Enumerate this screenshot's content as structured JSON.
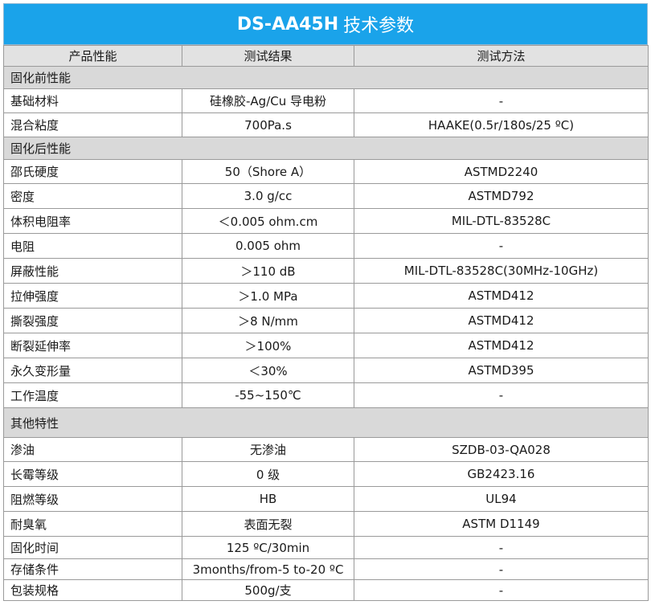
{
  "title": {
    "main": "DS-AA45H",
    "suffix": "技术参数"
  },
  "headers": [
    "产品性能",
    "测试结果",
    "测试方法"
  ],
  "rows": [
    {
      "type": "section",
      "label": "固化前性能",
      "h": 28
    },
    {
      "type": "data",
      "cells": [
        "基础材料",
        "硅橡胶-Ag/Cu 导电粉",
        "-"
      ],
      "h": 30
    },
    {
      "type": "data",
      "cells": [
        "混合粘度",
        "700Pa.s",
        "HAAKE(0.5r/180s/25 ºC)"
      ],
      "h": 30
    },
    {
      "type": "section",
      "label": "固化后性能",
      "h": 28
    },
    {
      "type": "data",
      "cells": [
        "邵氏硬度",
        "50（Shore A）",
        "ASTMD2240"
      ],
      "h": 30
    },
    {
      "type": "data",
      "cells": [
        "密度",
        "3.0 g/cc",
        "ASTMD792"
      ],
      "h": 31
    },
    {
      "type": "data",
      "cells": [
        "体积电阻率",
        "＜0.005 ohm.cm",
        "MIL-DTL-83528C"
      ],
      "h": 31
    },
    {
      "type": "data",
      "cells": [
        "电阻",
        "0.005 ohm",
        "-"
      ],
      "h": 31
    },
    {
      "type": "data",
      "cells": [
        "屏蔽性能",
        "＞110 dB",
        "MIL-DTL-83528C(30MHz-10GHz)"
      ],
      "h": 31
    },
    {
      "type": "data",
      "cells": [
        "拉伸强度",
        "＞1.0 MPa",
        "ASTMD412"
      ],
      "h": 31
    },
    {
      "type": "data",
      "cells": [
        "撕裂强度",
        "＞8 N/mm",
        "ASTMD412"
      ],
      "h": 31
    },
    {
      "type": "data",
      "cells": [
        "断裂延伸率",
        "＞100%",
        "ASTMD412"
      ],
      "h": 31
    },
    {
      "type": "data",
      "cells": [
        "永久变形量",
        "＜30%",
        "ASTMD395"
      ],
      "h": 31
    },
    {
      "type": "data",
      "cells": [
        "工作温度",
        "-55~150℃",
        "-"
      ],
      "h": 31
    },
    {
      "type": "section",
      "label": "其他特性",
      "h": 37
    },
    {
      "type": "data",
      "cells": [
        "渗油",
        "无渗油",
        "SZDB-03-QA028"
      ],
      "h": 30
    },
    {
      "type": "data",
      "cells": [
        "长霉等级",
        "0 级",
        "GB2423.16"
      ],
      "h": 31
    },
    {
      "type": "data",
      "cells": [
        "阻燃等级",
        "HB",
        "UL94"
      ],
      "h": 31
    },
    {
      "type": "data",
      "cells": [
        "耐臭氧",
        "表面无裂",
        "ASTM D1149"
      ],
      "h": 31
    },
    {
      "type": "data",
      "cells": [
        "固化时间",
        "125 ºC/30min",
        "-"
      ],
      "h": 28
    },
    {
      "type": "data",
      "cells": [
        "存储条件",
        "3months/from-5 to-20 ºC",
        "-"
      ],
      "h": 26
    },
    {
      "type": "data",
      "cells": [
        "包装规格",
        "500g/支",
        "-"
      ],
      "h": 26
    }
  ]
}
